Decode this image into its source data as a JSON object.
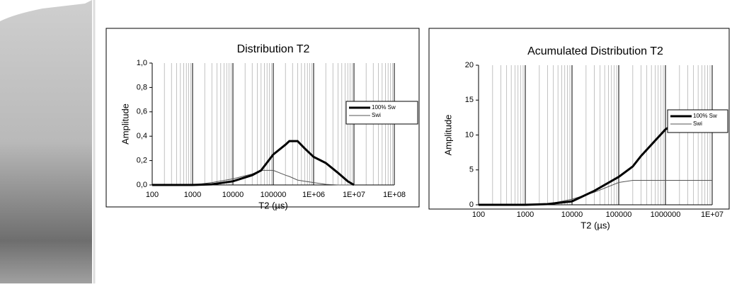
{
  "chart_data": [
    {
      "type": "line",
      "title": "Distribution T2",
      "x_label": "T2 (µs)",
      "y_label": "Amplitude",
      "xscale": "log",
      "grid": "x",
      "legend": "right",
      "xlim": [
        100,
        100000000
      ],
      "xticks": [
        100,
        1000,
        10000,
        100000,
        {
          "value": 1000000,
          "label": "1E+06"
        },
        {
          "value": 10000000,
          "label": "1E+07"
        },
        {
          "value": 100000000,
          "label": "1E+08"
        }
      ],
      "ylim": [
        0,
        1
      ],
      "yticks": [
        {
          "value": 0,
          "label": "0,0"
        },
        {
          "value": 0.2,
          "label": "0,2"
        },
        {
          "value": 0.4,
          "label": "0,4"
        },
        {
          "value": 0.6,
          "label": "0,6"
        },
        {
          "value": 0.8,
          "label": "0,8"
        },
        {
          "value": 1,
          "label": "1,0"
        }
      ],
      "x": [
        100,
        1000,
        3000,
        10000,
        30000,
        50000,
        100000,
        200000,
        250000,
        400000,
        600000,
        1000000,
        2000000,
        4000000,
        7000000,
        10000000
      ],
      "series": [
        {
          "name": "100% Sw",
          "color": "#000000",
          "line_width": 3,
          "values": [
            0,
            0,
            0.005,
            0.03,
            0.08,
            0.12,
            0.25,
            0.33,
            0.36,
            0.36,
            0.3,
            0.23,
            0.18,
            0.1,
            0.03,
            0
          ]
        },
        {
          "name": "Swi",
          "color": "#555555",
          "line_width": 1,
          "values": [
            0,
            0,
            0.02,
            0.05,
            0.09,
            0.12,
            0.12,
            0.08,
            0.07,
            0.04,
            0.03,
            0.02,
            0.005,
            0,
            0,
            0
          ]
        }
      ]
    },
    {
      "type": "line",
      "title": "Acumulated Distribution T2",
      "x_label": "T2 (µs)",
      "y_label": "Amplitude",
      "xscale": "log",
      "grid": "x",
      "legend": "right",
      "xlim": [
        100,
        10000000
      ],
      "xticks": [
        100,
        1000,
        10000,
        100000,
        1000000,
        {
          "value": 10000000,
          "label": "1E+07"
        }
      ],
      "ylim": [
        0,
        20
      ],
      "yticks": [
        0,
        5,
        10,
        15,
        20
      ],
      "x": [
        100,
        1000,
        3000,
        10000,
        30000,
        100000,
        200000,
        300000,
        1000000,
        2000000,
        4000000,
        10000000
      ],
      "series": [
        {
          "name": "100% Sw",
          "color": "#000000",
          "line_width": 3,
          "values": [
            0,
            0,
            0.1,
            0.5,
            2,
            4,
            5.5,
            7,
            10.8,
            12,
            12.7,
            12.7
          ]
        },
        {
          "name": "Swi",
          "color": "#555555",
          "line_width": 1,
          "values": [
            0,
            0,
            0.1,
            0.8,
            1.8,
            3.2,
            3.5,
            3.5,
            3.5,
            3.5,
            3.5,
            3.5
          ]
        }
      ]
    }
  ]
}
